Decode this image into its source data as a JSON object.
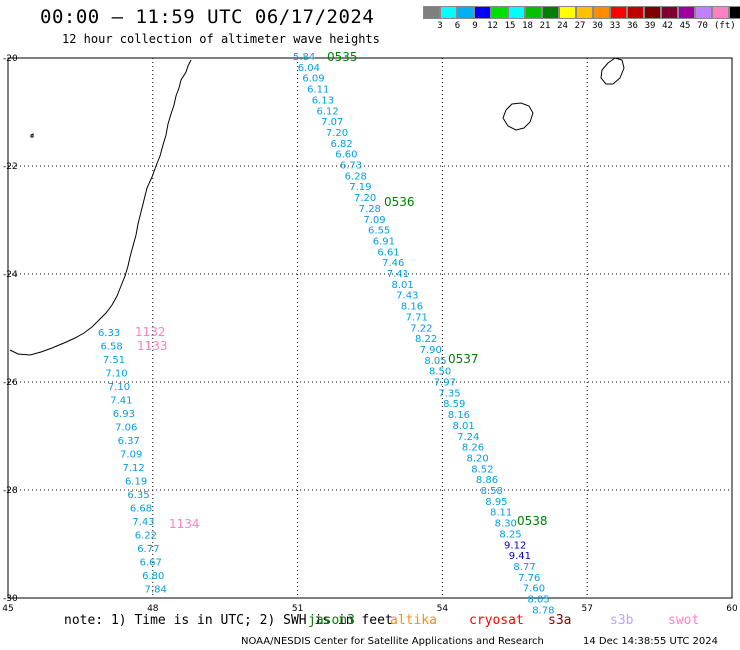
{
  "header": {
    "title": "00:00 — 11:59 UTC 06/17/2024",
    "subtitle": "12 hour collection of altimeter wave heights"
  },
  "legend": {
    "unit": "(ft)",
    "colors": [
      "#7f7f7f",
      "#00ffff",
      "#00b0f0",
      "#0000ff",
      "#00e000",
      "#00ffff",
      "#00c000",
      "#008000",
      "#ffff00",
      "#ffc000",
      "#ff8c00",
      "#ff0000",
      "#c00000",
      "#800000",
      "#7f0030",
      "#a000a0",
      "#c080ff",
      "#ff80c0",
      "#000000"
    ],
    "labels": [
      "3",
      "6",
      "9",
      "12",
      "15",
      "18",
      "21",
      "24",
      "27",
      "30",
      "33",
      "36",
      "39",
      "42",
      "45",
      "70"
    ]
  },
  "map": {
    "lon_ticks": [
      "45",
      "48",
      "51",
      "54",
      "57",
      "60"
    ],
    "lat_ticks": [
      "-20",
      "-22",
      "-24",
      "-26",
      "-28",
      "-30"
    ]
  },
  "tracks": {
    "main": {
      "color": "#00a0e0",
      "values": [
        "5.84",
        "6.04",
        "6.09",
        "6.11",
        "6.13",
        "6.12",
        "7.07",
        "7.20",
        "6.82",
        "6.60",
        "6.73",
        "6.28",
        "7.19",
        "7.20",
        "7.28",
        "7.09",
        "6.55",
        "6.91",
        "6.61",
        "7.46",
        "7.41",
        "8.01",
        "7.43",
        "8.16",
        "7.71",
        "7.22",
        "8.22",
        "7.90",
        "8.05",
        "8.50",
        "7.97",
        "7.35",
        "8.59",
        "8.16",
        "8.01",
        "7.24",
        "8.26",
        "8.20",
        "8.52",
        "8.86",
        "8.58",
        "8.95",
        "8.11",
        "8.30",
        "8.25",
        "9.12",
        "9.41",
        "8.77",
        "7.76",
        "7.60",
        "8.05",
        "8.78"
      ],
      "highlight": {
        "9.12": "#0000c0",
        "9.41": "#0000c0"
      },
      "times": [
        "0535",
        "0536",
        "0537",
        "0538"
      ]
    },
    "west": {
      "color": "#00a0e0",
      "values": [
        "6.33",
        "6.58",
        "7.51",
        "7.10",
        "7.10",
        "7.41",
        "6.93",
        "7.06",
        "6.37",
        "7.09",
        "7.12",
        "6.19",
        "6.35",
        "6.68",
        "7.43",
        "6.22",
        "6.77",
        "6.67",
        "6.80",
        "7.84"
      ],
      "times": [
        "1132",
        "1133",
        "1134"
      ]
    }
  },
  "footer": {
    "note": "note: 1) Time is in UTC; 2) SWH is in feet",
    "satellites": [
      {
        "name": "jason3",
        "color": "#008000"
      },
      {
        "name": "altika",
        "color": "#ff8c00"
      },
      {
        "name": "cryosat",
        "color": "#ff0000"
      },
      {
        "name": "s3a",
        "color": "#800000"
      },
      {
        "name": "s3b",
        "color": "#c0a0ff"
      },
      {
        "name": "swot",
        "color": "#ff80c0"
      }
    ],
    "credit": "NOAA/NESDIS Center for Satellite Applications and Research",
    "date": "14 Dec 14:38:55 UTC 2024"
  }
}
